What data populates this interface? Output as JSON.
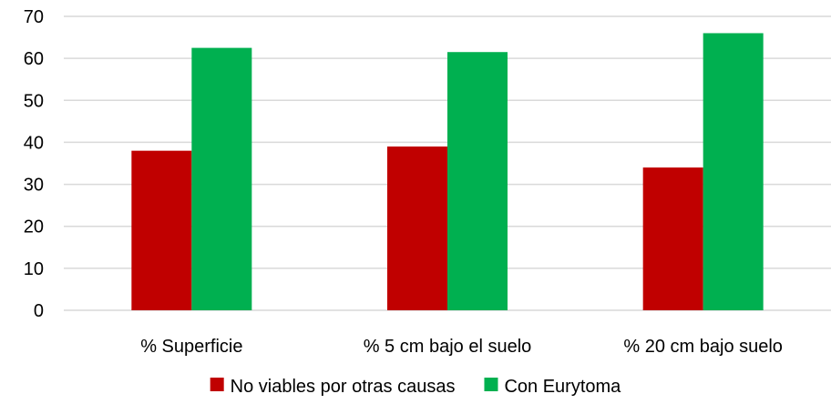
{
  "chart_data": {
    "type": "bar",
    "categories": [
      "% Superficie",
      "% 5 cm bajo el suelo",
      "% 20 cm bajo suelo"
    ],
    "series": [
      {
        "name": "No viables por otras causas",
        "color": "#c00000",
        "values": [
          38,
          39,
          34
        ]
      },
      {
        "name": "Con Eurytoma",
        "color": "#00b050",
        "values": [
          62.5,
          61.5,
          66
        ]
      }
    ],
    "title": "",
    "xlabel": "",
    "ylabel": "",
    "ylim": [
      0,
      70
    ],
    "yticks": [
      0,
      10,
      20,
      30,
      40,
      50,
      60,
      70
    ],
    "grid": true,
    "legend_position": "bottom"
  }
}
